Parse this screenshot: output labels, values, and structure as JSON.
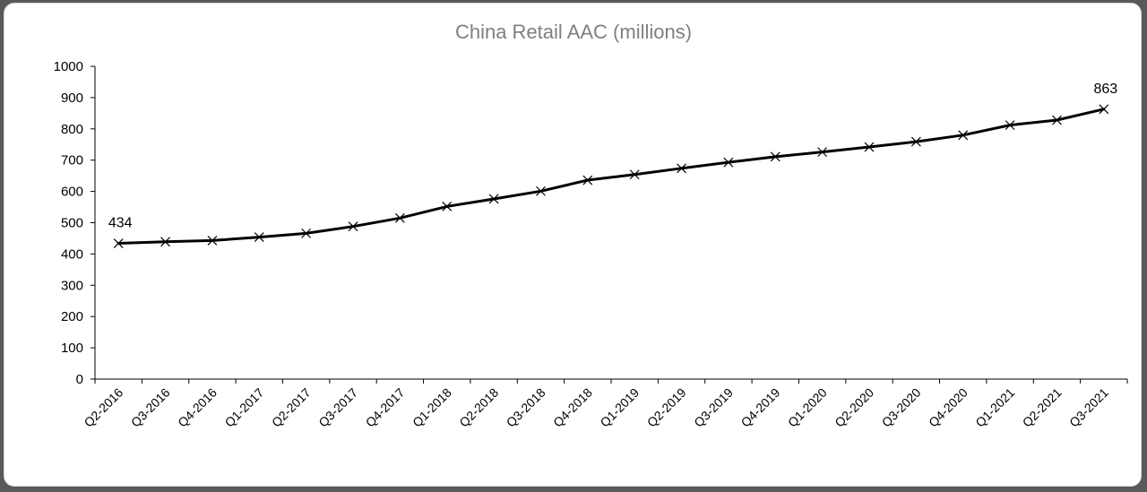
{
  "chart_data": {
    "type": "line",
    "title": "China Retail AAC (millions)",
    "xlabel": "",
    "ylabel": "",
    "ylim": [
      0,
      1000
    ],
    "yticks": [
      0,
      100,
      200,
      300,
      400,
      500,
      600,
      700,
      800,
      900,
      1000
    ],
    "grid": false,
    "legend": "none",
    "marker": "x",
    "line_color": "#000000",
    "categories": [
      "Q2-2016",
      "Q3-2016",
      "Q4-2016",
      "Q1-2017",
      "Q2-2017",
      "Q3-2017",
      "Q4-2017",
      "Q1-2018",
      "Q2-2018",
      "Q3-2018",
      "Q4-2018",
      "Q1-2019",
      "Q2-2019",
      "Q3-2019",
      "Q4-2019",
      "Q1-2020",
      "Q2-2020",
      "Q3-2020",
      "Q4-2020",
      "Q1-2021",
      "Q2-2021",
      "Q3-2021"
    ],
    "series": [
      {
        "values": [
          434,
          439,
          443,
          454,
          466,
          488,
          515,
          552,
          576,
          601,
          636,
          654,
          674,
          693,
          711,
          726,
          742,
          759,
          780,
          812,
          828,
          863
        ]
      }
    ],
    "data_labels": [
      {
        "index": 0,
        "text": "434"
      },
      {
        "index": 21,
        "text": "863"
      }
    ]
  }
}
